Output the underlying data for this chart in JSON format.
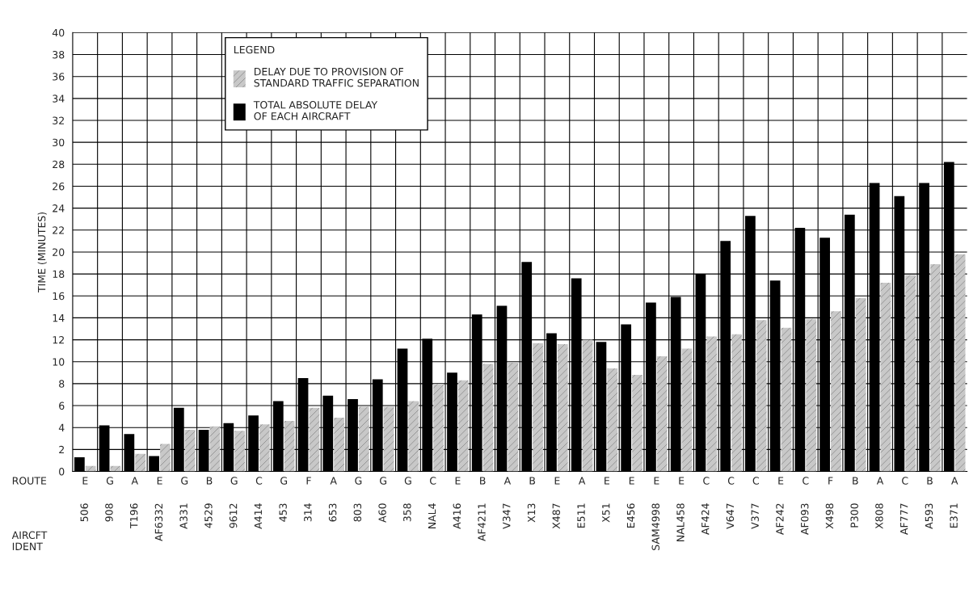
{
  "chart_data": {
    "type": "bar",
    "ylabel": "TIME (MINUTES)",
    "xlabel": "AIRCFT\nIDENT",
    "legend_title": "LEGEND",
    "categories": [
      "506",
      "908",
      "T196",
      "AF6332",
      "A331",
      "4529",
      "9612",
      "A414",
      "453",
      "314",
      "653",
      "803",
      "A60",
      "358",
      "NAL4",
      "A416",
      "AF4211",
      "V347",
      "X13",
      "X487",
      "E511",
      "X51",
      "E456",
      "SAM4998",
      "NAL458",
      "AF424",
      "V647",
      "V377",
      "AF242",
      "AF093",
      "X498",
      "P300",
      "X808",
      "AF777",
      "A593",
      "E371"
    ],
    "series": [
      {
        "name": "TOTAL ABSOLUTE DELAY\nOF EACH AIRCRAFT",
        "color": "#000000",
        "values": [
          1.3,
          4.2,
          3.4,
          1.4,
          5.8,
          3.8,
          4.4,
          5.1,
          6.4,
          8.5,
          6.9,
          6.6,
          8.4,
          11.2,
          12.1,
          9.0,
          14.3,
          15.1,
          19.1,
          12.6,
          17.6,
          11.8,
          13.4,
          15.4,
          15.9,
          18.0,
          21.0,
          23.3,
          17.4,
          22.2,
          21.3,
          23.4,
          26.3,
          25.1,
          26.3,
          28.2
        ]
      },
      {
        "name": "DELAY DUE TO PROVISION OF\nSTANDARD TRAFFIC SEPARATION",
        "color": "#c8c8c8",
        "values": [
          0.5,
          0.5,
          1.6,
          2.5,
          3.8,
          4.1,
          3.7,
          4.3,
          4.6,
          5.8,
          4.9,
          5.9,
          5.9,
          6.4,
          8.0,
          8.3,
          9.8,
          9.9,
          11.7,
          11.6,
          12.0,
          9.4,
          8.8,
          10.5,
          11.2,
          12.3,
          12.5,
          13.8,
          13.1,
          13.9,
          14.6,
          15.8,
          17.2,
          17.9,
          18.9,
          19.8
        ]
      }
    ],
    "ylim": [
      0,
      40
    ],
    "yticks": [
      0,
      2,
      4,
      6,
      8,
      10,
      12,
      14,
      16,
      18,
      20,
      22,
      24,
      26,
      28,
      30,
      32,
      34,
      36,
      38,
      40
    ],
    "grid": true,
    "legend": "top left",
    "annotations": [
      "ROUTE",
      "E",
      "G",
      "A",
      "E",
      "G",
      "B",
      "G",
      "C",
      "G",
      "F",
      "A",
      "G",
      "G",
      "G",
      "C",
      "E",
      "B",
      "A",
      "B",
      "E",
      "A",
      "E",
      "E",
      "E",
      "E",
      "C",
      "C",
      "C",
      "E",
      "C",
      "F",
      "B",
      "A",
      "C",
      "B",
      "A"
    ]
  }
}
